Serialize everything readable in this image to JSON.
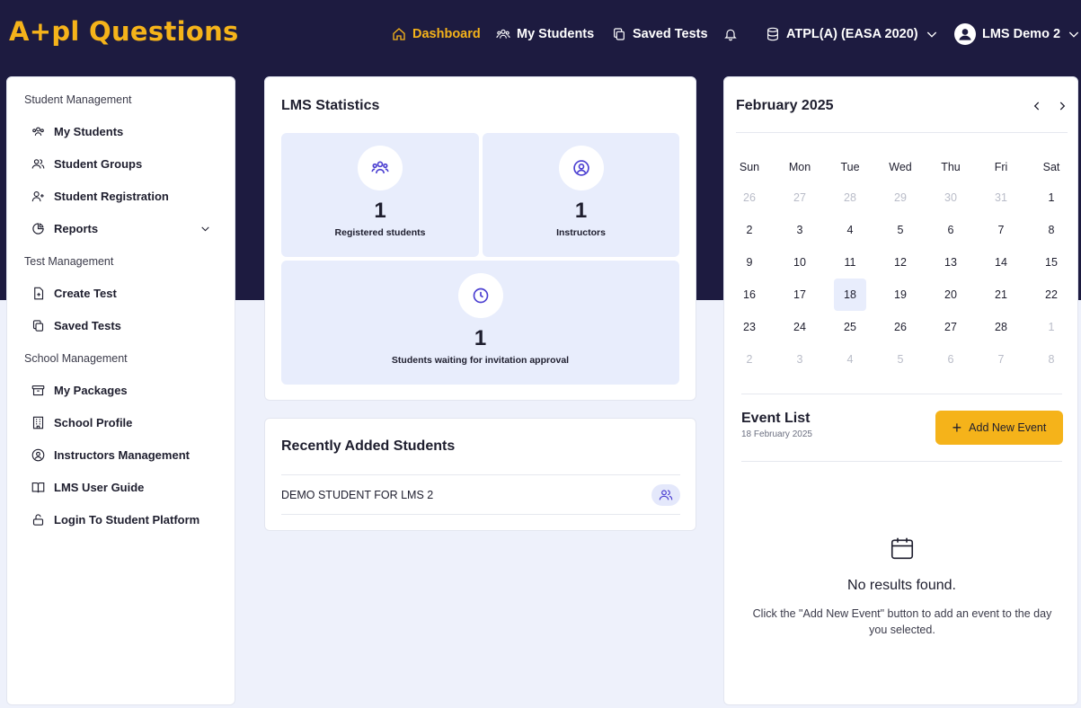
{
  "header": {
    "logo": "A+pl Questions",
    "nav": {
      "dashboard": "Dashboard",
      "my_students": "My Students",
      "saved_tests": "Saved Tests",
      "package": "ATPL(A) (EASA 2020)",
      "user": "LMS Demo 2"
    },
    "icons": [
      "home-icon",
      "users-icon",
      "copy-icon",
      "bell-icon",
      "database-icon",
      "user-avatar-icon"
    ]
  },
  "sidebar": {
    "sections": [
      {
        "title": "Student Management",
        "items": [
          {
            "label": "My Students",
            "icon": "users-icon"
          },
          {
            "label": "Student Groups",
            "icon": "group-icon"
          },
          {
            "label": "Student Registration",
            "icon": "user-plus-icon"
          },
          {
            "label": "Reports",
            "icon": "pie-chart-icon",
            "expandable": true
          }
        ]
      },
      {
        "title": "Test Management",
        "items": [
          {
            "label": "Create Test",
            "icon": "file-plus-icon"
          },
          {
            "label": "Saved Tests",
            "icon": "copy-icon"
          }
        ]
      },
      {
        "title": "School Management",
        "items": [
          {
            "label": "My Packages",
            "icon": "archive-icon"
          },
          {
            "label": "School Profile",
            "icon": "building-icon"
          },
          {
            "label": "Instructors Management",
            "icon": "user-circle-icon"
          },
          {
            "label": "LMS User Guide",
            "icon": "book-icon"
          },
          {
            "label": "Login To Student Platform",
            "icon": "unlock-icon"
          }
        ]
      }
    ]
  },
  "stats": {
    "title": "LMS Statistics",
    "registered": {
      "value": "1",
      "label": "Registered students"
    },
    "instructors": {
      "value": "1",
      "label": "Instructors"
    },
    "waiting": {
      "value": "1",
      "label": "Students waiting for invitation approval"
    }
  },
  "recent": {
    "title": "Recently Added Students",
    "rows": [
      "DEMO STUDENT FOR LMS 2"
    ]
  },
  "calendar": {
    "month": "February 2025",
    "weekdays": [
      "Sun",
      "Mon",
      "Tue",
      "Wed",
      "Thu",
      "Fri",
      "Sat"
    ],
    "weeks": [
      [
        [
          "26",
          true
        ],
        [
          "27",
          true
        ],
        [
          "28",
          true
        ],
        [
          "29",
          true
        ],
        [
          "30",
          true
        ],
        [
          "31",
          true
        ],
        [
          "1",
          false
        ]
      ],
      [
        [
          "2",
          false
        ],
        [
          "3",
          false
        ],
        [
          "4",
          false
        ],
        [
          "5",
          false
        ],
        [
          "6",
          false
        ],
        [
          "7",
          false
        ],
        [
          "8",
          false
        ]
      ],
      [
        [
          "9",
          false
        ],
        [
          "10",
          false
        ],
        [
          "11",
          false
        ],
        [
          "12",
          false
        ],
        [
          "13",
          false
        ],
        [
          "14",
          false
        ],
        [
          "15",
          false
        ]
      ],
      [
        [
          "16",
          false
        ],
        [
          "17",
          false
        ],
        [
          "18",
          false
        ],
        [
          "19",
          false
        ],
        [
          "20",
          false
        ],
        [
          "21",
          false
        ],
        [
          "22",
          false
        ]
      ],
      [
        [
          "23",
          false
        ],
        [
          "24",
          false
        ],
        [
          "25",
          false
        ],
        [
          "26",
          false
        ],
        [
          "27",
          false
        ],
        [
          "28",
          false
        ],
        [
          "1",
          true
        ]
      ],
      [
        [
          "2",
          true
        ],
        [
          "3",
          true
        ],
        [
          "4",
          true
        ],
        [
          "5",
          true
        ],
        [
          "6",
          true
        ],
        [
          "7",
          true
        ],
        [
          "8",
          true
        ]
      ]
    ],
    "selected_day": "18"
  },
  "events": {
    "title": "Event List",
    "date": "18 February 2025",
    "add_label": "Add New Event",
    "empty_title": "No results found.",
    "empty_text": "Click the \"Add New Event\" button to add an event to the day you selected."
  },
  "colors": {
    "navy": "#1d1b40",
    "accent": "#f5b31a",
    "icon_purple": "#4b3fd1",
    "stat_bg": "#e8edfc"
  }
}
